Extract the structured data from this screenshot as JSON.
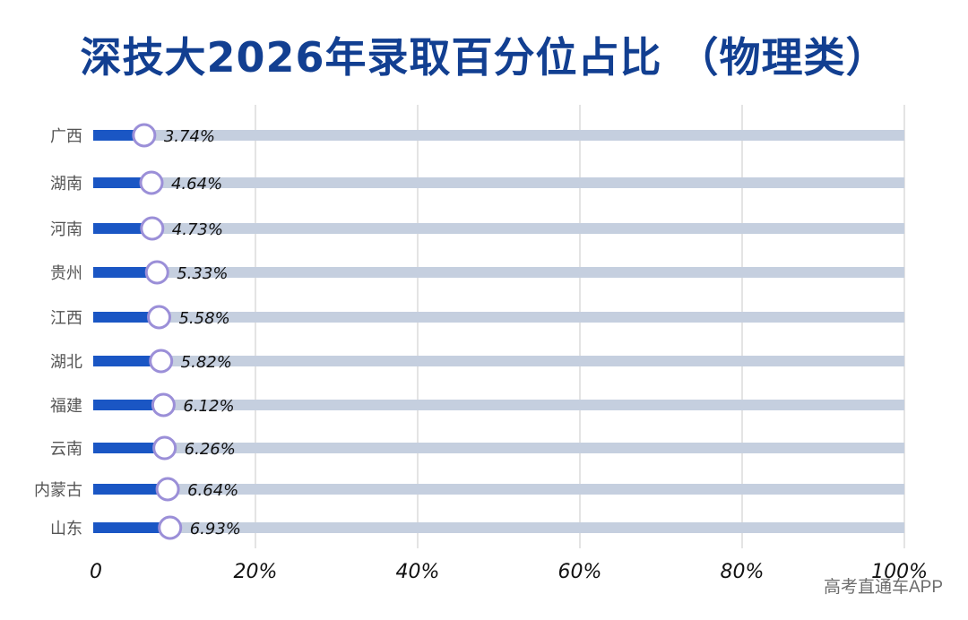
{
  "chart_data": {
    "type": "bar",
    "title": "深技大2026年录取百分位占比 （物理类）",
    "categories": [
      "广西",
      "湖南",
      "河南",
      "贵州",
      "江西",
      "湖北",
      "福建",
      "云南",
      "内蒙古",
      "山东"
    ],
    "values": [
      3.74,
      4.64,
      4.73,
      5.33,
      5.58,
      5.82,
      6.12,
      6.26,
      6.64,
      6.93
    ],
    "value_labels": [
      "3.74%",
      "4.64%",
      "4.73%",
      "5.33%",
      "5.58%",
      "5.82%",
      "6.12%",
      "6.26%",
      "6.64%",
      "6.93%"
    ],
    "x_ticks": [
      "0",
      "20%",
      "40%",
      "60%",
      "80%",
      "100%"
    ],
    "xlim": [
      0,
      100
    ],
    "grid": true,
    "colors": {
      "title": "#123f91",
      "bar_fill": "#1a56c4",
      "track": "#c5cfdf",
      "marker_ring": "#9b8fd8",
      "marker_fill": "#ffffff",
      "grid": "#c8c8c8",
      "label": "#555555",
      "value_text": "#111111"
    }
  },
  "watermark": "高考直通车APP"
}
